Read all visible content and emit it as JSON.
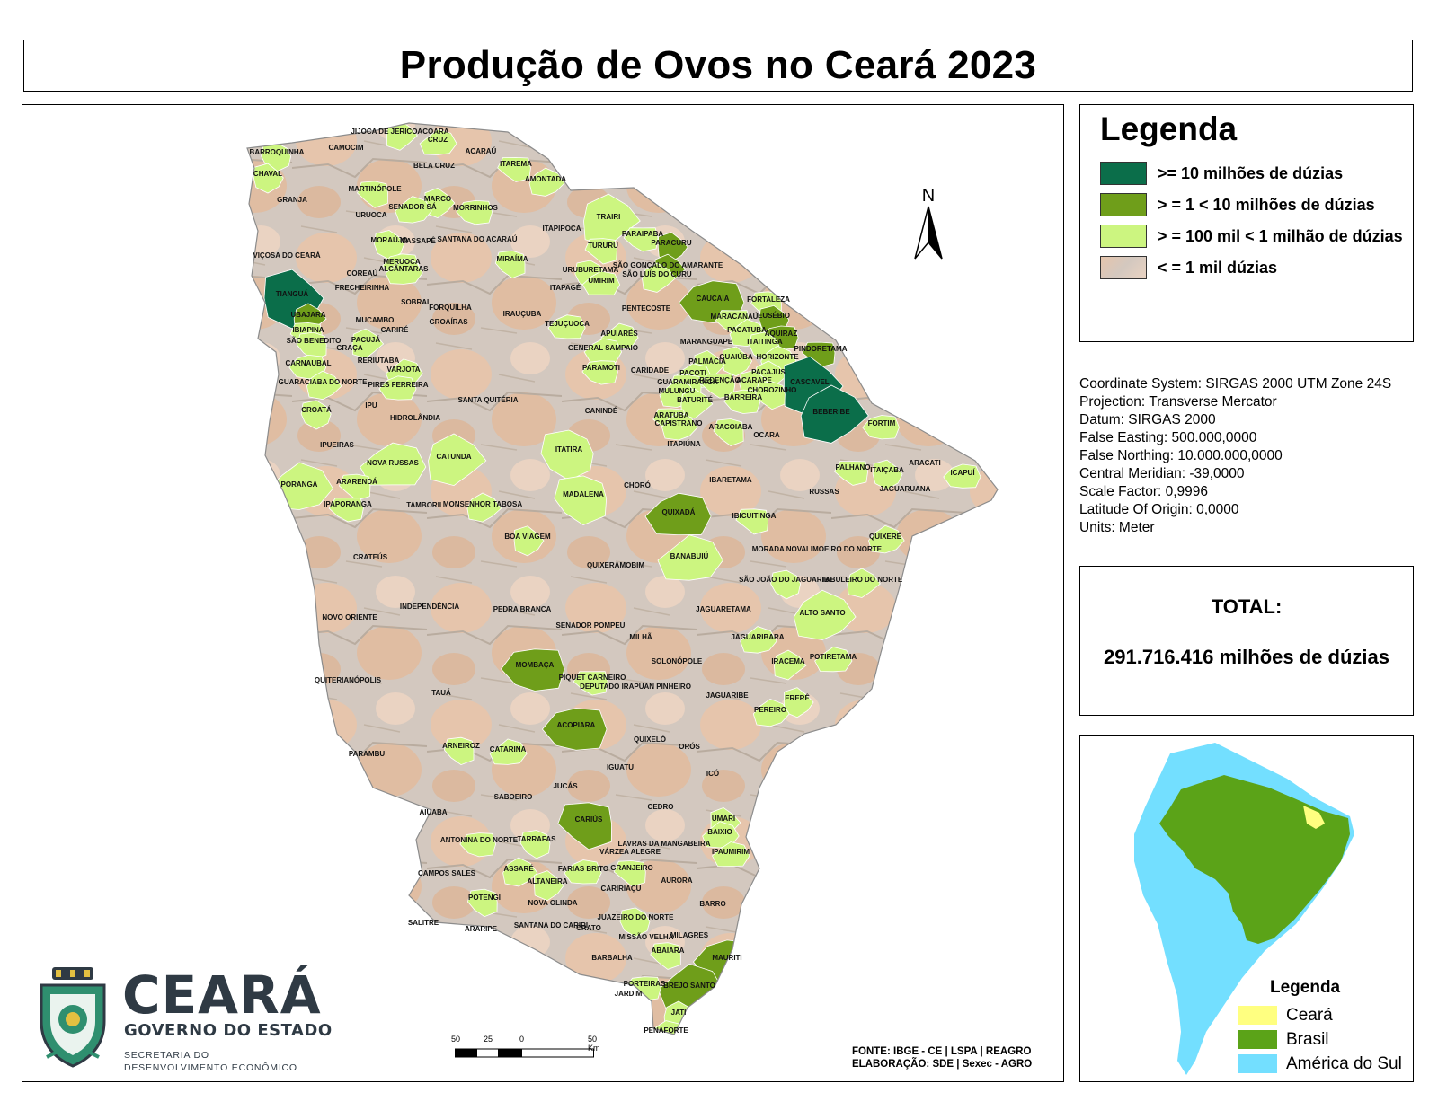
{
  "title": "Produção de Ovos no Ceará 2023",
  "legend": {
    "title": "Legenda",
    "items": [
      {
        "label": ">=  10 milhões de dúzias",
        "color": "#0b6e4a"
      },
      {
        "label": "> = 1 < 10 milhões de dúzias",
        "color": "#6f9e1a"
      },
      {
        "label": "> = 100 mil < 1 milhão de dúzias",
        "color": "#ccf580"
      },
      {
        "label": "< = 1 mil dúzias",
        "color": "#e3cfc0"
      }
    ]
  },
  "coordinate_info": [
    "Coordinate System: SIRGAS 2000 UTM Zone 24S",
    "Projection: Transverse Mercator",
    "Datum: SIRGAS 2000",
    "False Easting: 500.000,0000",
    "False Northing: 10.000.000,0000",
    "Central Meridian: -39,0000",
    "Scale Factor: 0,9996",
    "Latitude Of Origin: 0,0000",
    "Units: Meter"
  ],
  "total": {
    "label": "TOTAL:",
    "value": "291.716.416 milhões de dúzias"
  },
  "inset": {
    "legend_title": "Legenda",
    "items": [
      {
        "label": "Ceará",
        "color": "#ffff80"
      },
      {
        "label": "Brasil",
        "color": "#5ba318"
      },
      {
        "label": "América do Sul",
        "color": "#73dfff"
      }
    ]
  },
  "north_label": "N",
  "scale": {
    "ticks": [
      "50",
      "25",
      "0",
      "50 Km"
    ]
  },
  "source": {
    "line1": "FONTE: IBGE - CE | LSPA | REAGRO",
    "line2": "ELABORAÇÃO: SDE | Sexec - AGRO"
  },
  "logo": {
    "word": "CEARÁ",
    "subtitle": "GOVERNO DO ESTADO",
    "dept_line1": "SECRETARIA DO",
    "dept_line2": "DESENVOLVIMENTO ECONÔMICO"
  },
  "municipalities": [
    {
      "name": "JIJOCA DE JERICOACOARA",
      "cat": 3
    },
    {
      "name": "CRUZ",
      "cat": 3
    },
    {
      "name": "CAMOCIM",
      "cat": 4
    },
    {
      "name": "BARROQUINHA",
      "cat": 3
    },
    {
      "name": "ACARAÚ",
      "cat": 4
    },
    {
      "name": "BELA CRUZ",
      "cat": 4
    },
    {
      "name": "ITAREMA",
      "cat": 3
    },
    {
      "name": "CHAVAL",
      "cat": 3
    },
    {
      "name": "AMONTADA",
      "cat": 3
    },
    {
      "name": "GRANJA",
      "cat": 4
    },
    {
      "name": "MARTINÓPOLE",
      "cat": 3
    },
    {
      "name": "MARCO",
      "cat": 3
    },
    {
      "name": "SENADOR SÁ",
      "cat": 3
    },
    {
      "name": "MORRINHOS",
      "cat": 3
    },
    {
      "name": "URUOCA",
      "cat": 4
    },
    {
      "name": "TRAIRI",
      "cat": 3
    },
    {
      "name": "ITAPIPOCA",
      "cat": 4
    },
    {
      "name": "PARAIPABA",
      "cat": 3
    },
    {
      "name": "MORAÚJO",
      "cat": 3
    },
    {
      "name": "MASSAPÊ",
      "cat": 4
    },
    {
      "name": "SANTANA DO ACARAÚ",
      "cat": 4
    },
    {
      "name": "TURURU",
      "cat": 3
    },
    {
      "name": "PARACURU",
      "cat": 2
    },
    {
      "name": "VIÇOSA DO CEARÁ",
      "cat": 4
    },
    {
      "name": "MERUOCA",
      "cat": 3
    },
    {
      "name": "MIRAÍMA",
      "cat": 3
    },
    {
      "name": "SÃO GONÇALO DO AMARANTE",
      "cat": 2
    },
    {
      "name": "ALCÂNTARAS",
      "cat": 3
    },
    {
      "name": "COREAÚ",
      "cat": 4
    },
    {
      "name": "URUBURETAMA",
      "cat": 3
    },
    {
      "name": "SÃO LUÍS DO CURU",
      "cat": 3
    },
    {
      "name": "UMIRIM",
      "cat": 3
    },
    {
      "name": "FRECHEIRINHA",
      "cat": 4
    },
    {
      "name": "TIANGUÁ",
      "cat": 1
    },
    {
      "name": "ITAPAGÉ",
      "cat": 4
    },
    {
      "name": "CAUCAIA",
      "cat": 2
    },
    {
      "name": "FORTALEZA",
      "cat": 3
    },
    {
      "name": "SOBRAL",
      "cat": 4
    },
    {
      "name": "FORQUILHA",
      "cat": 4
    },
    {
      "name": "IRAUÇUBA",
      "cat": 4
    },
    {
      "name": "PENTECOSTE",
      "cat": 4
    },
    {
      "name": "UBAJARA",
      "cat": 2
    },
    {
      "name": "MUCAMBO",
      "cat": 4
    },
    {
      "name": "MARACANAÚ",
      "cat": 3
    },
    {
      "name": "EUSÉBIO",
      "cat": 2
    },
    {
      "name": "GROAÍRAS",
      "cat": 4
    },
    {
      "name": "TEJUÇUOCA",
      "cat": 3
    },
    {
      "name": "IBIAPINA",
      "cat": 3
    },
    {
      "name": "CARIRÉ",
      "cat": 4
    },
    {
      "name": "PACATUBA",
      "cat": 3
    },
    {
      "name": "AQUIRAZ",
      "cat": 2
    },
    {
      "name": "SÃO BENEDITO",
      "cat": 3
    },
    {
      "name": "PACUJÁ",
      "cat": 3
    },
    {
      "name": "APUIARÉS",
      "cat": 3
    },
    {
      "name": "MARANGUAPE",
      "cat": 4
    },
    {
      "name": "ITAITINGA",
      "cat": 3
    },
    {
      "name": "GRAÇA",
      "cat": 4
    },
    {
      "name": "GENERAL SAMPAIO",
      "cat": 3
    },
    {
      "name": "PINDORETAMA",
      "cat": 2
    },
    {
      "name": "GUAIÚBA",
      "cat": 3
    },
    {
      "name": "HORIZONTE",
      "cat": 3
    },
    {
      "name": "CARNAUBAL",
      "cat": 3
    },
    {
      "name": "RERIUTABA",
      "cat": 4
    },
    {
      "name": "PALMÁCIA",
      "cat": 3
    },
    {
      "name": "VARJOTA",
      "cat": 3
    },
    {
      "name": "PARAMOTI",
      "cat": 3
    },
    {
      "name": "CARIDADE",
      "cat": 4
    },
    {
      "name": "PACAJUS",
      "cat": 3
    },
    {
      "name": "PACOTI",
      "cat": 3
    },
    {
      "name": "REDENÇÃO",
      "cat": 3
    },
    {
      "name": "ACARAPE",
      "cat": 3
    },
    {
      "name": "GUARACIABA DO NORTE",
      "cat": 3
    },
    {
      "name": "PIRES FERREIRA",
      "cat": 3
    },
    {
      "name": "GUARAMIRANGA",
      "cat": 3
    },
    {
      "name": "CASCAVEL",
      "cat": 1
    },
    {
      "name": "MULUNGU",
      "cat": 3
    },
    {
      "name": "BARREIRA",
      "cat": 3
    },
    {
      "name": "CHOROZINHO",
      "cat": 3
    },
    {
      "name": "BATURITÉ",
      "cat": 3
    },
    {
      "name": "SANTA QUITÉRIA",
      "cat": 4
    },
    {
      "name": "IPU",
      "cat": 4
    },
    {
      "name": "CROATÁ",
      "cat": 3
    },
    {
      "name": "BEBERIBE",
      "cat": 1
    },
    {
      "name": "CANINDÉ",
      "cat": 4
    },
    {
      "name": "ARATUBA",
      "cat": 3
    },
    {
      "name": "HIDROLÂNDIA",
      "cat": 4
    },
    {
      "name": "CAPISTRANO",
      "cat": 3
    },
    {
      "name": "FORTIM",
      "cat": 3
    },
    {
      "name": "ARACOIABA",
      "cat": 3
    },
    {
      "name": "OCARA",
      "cat": 4
    },
    {
      "name": "ITAPIÚNA",
      "cat": 4
    },
    {
      "name": "IPUEIRAS",
      "cat": 4
    },
    {
      "name": "ITATIRA",
      "cat": 3
    },
    {
      "name": "CATUNDA",
      "cat": 3
    },
    {
      "name": "NOVA RUSSAS",
      "cat": 3
    },
    {
      "name": "PALHANO",
      "cat": 3
    },
    {
      "name": "ITAIÇABA",
      "cat": 3
    },
    {
      "name": "ARACATI",
      "cat": 4
    },
    {
      "name": "ICAPUÍ",
      "cat": 3
    },
    {
      "name": "ARARENDÁ",
      "cat": 3
    },
    {
      "name": "IBARETAMA",
      "cat": 4
    },
    {
      "name": "PORANGA",
      "cat": 3
    },
    {
      "name": "CHORÓ",
      "cat": 4
    },
    {
      "name": "MADALENA",
      "cat": 3
    },
    {
      "name": "RUSSAS",
      "cat": 4
    },
    {
      "name": "JAGUARUANA",
      "cat": 4
    },
    {
      "name": "IPAPORANGA",
      "cat": 3
    },
    {
      "name": "TAMBORIL",
      "cat": 4
    },
    {
      "name": "MONSENHOR TABOSA",
      "cat": 3
    },
    {
      "name": "QUIXADÁ",
      "cat": 2
    },
    {
      "name": "IBICUITINGA",
      "cat": 3
    },
    {
      "name": "BOA VIAGEM",
      "cat": 3
    },
    {
      "name": "QUIXERÉ",
      "cat": 3
    },
    {
      "name": "MORADA NOVA",
      "cat": 4
    },
    {
      "name": "LIMOEIRO DO NORTE",
      "cat": 4
    },
    {
      "name": "CRATEÚS",
      "cat": 4
    },
    {
      "name": "BANABUIÚ",
      "cat": 3
    },
    {
      "name": "QUIXERAMOBIM",
      "cat": 4
    },
    {
      "name": "SÃO JOÃO DO JAGUARIBE",
      "cat": 3
    },
    {
      "name": "TABULEIRO DO NORTE",
      "cat": 3
    },
    {
      "name": "INDEPENDÊNCIA",
      "cat": 4
    },
    {
      "name": "PEDRA BRANCA",
      "cat": 4
    },
    {
      "name": "JAGUARETAMA",
      "cat": 4
    },
    {
      "name": "ALTO SANTO",
      "cat": 3
    },
    {
      "name": "NOVO ORIENTE",
      "cat": 4
    },
    {
      "name": "SENADOR POMPEU",
      "cat": 4
    },
    {
      "name": "MILHÃ",
      "cat": 4
    },
    {
      "name": "JAGUARIBARA",
      "cat": 3
    },
    {
      "name": "MOMBAÇA",
      "cat": 2
    },
    {
      "name": "SOLONÓPOLE",
      "cat": 4
    },
    {
      "name": "IRACEMA",
      "cat": 3
    },
    {
      "name": "POTIRETAMA",
      "cat": 3
    },
    {
      "name": "PIQUET CARNEIRO",
      "cat": 3
    },
    {
      "name": "DEPUTADO IRAPUAN PINHEIRO",
      "cat": 4
    },
    {
      "name": "QUITERIANÓPOLIS",
      "cat": 4
    },
    {
      "name": "TAUÁ",
      "cat": 4
    },
    {
      "name": "JAGUARIBE",
      "cat": 4
    },
    {
      "name": "ERERÊ",
      "cat": 3
    },
    {
      "name": "PEREIRO",
      "cat": 3
    },
    {
      "name": "ACOPIARA",
      "cat": 2
    },
    {
      "name": "ARNEIROZ",
      "cat": 3
    },
    {
      "name": "QUIXELÔ",
      "cat": 4
    },
    {
      "name": "CATARINA",
      "cat": 3
    },
    {
      "name": "ORÓS",
      "cat": 4
    },
    {
      "name": "PARAMBU",
      "cat": 4
    },
    {
      "name": "IGUATU",
      "cat": 4
    },
    {
      "name": "ICÓ",
      "cat": 4
    },
    {
      "name": "JUCÁS",
      "cat": 4
    },
    {
      "name": "SABOEIRO",
      "cat": 4
    },
    {
      "name": "CEDRO",
      "cat": 4
    },
    {
      "name": "AIUABA",
      "cat": 4
    },
    {
      "name": "CARIÚS",
      "cat": 2
    },
    {
      "name": "UMARI",
      "cat": 3
    },
    {
      "name": "BAIXIO",
      "cat": 3
    },
    {
      "name": "ANTONINA DO NORTE",
      "cat": 3
    },
    {
      "name": "TARRAFAS",
      "cat": 3
    },
    {
      "name": "LAVRAS DA MANGABEIRA",
      "cat": 4
    },
    {
      "name": "IPAUMIRIM",
      "cat": 3
    },
    {
      "name": "VÁRZEA ALEGRE",
      "cat": 4
    },
    {
      "name": "CAMPOS SALES",
      "cat": 4
    },
    {
      "name": "ASSARÉ",
      "cat": 3
    },
    {
      "name": "FARIAS BRITO",
      "cat": 3
    },
    {
      "name": "GRANJEIRO",
      "cat": 3
    },
    {
      "name": "ALTANEIRA",
      "cat": 3
    },
    {
      "name": "AURORA",
      "cat": 4
    },
    {
      "name": "CARIRIAÇU",
      "cat": 4
    },
    {
      "name": "POTENGI",
      "cat": 3
    },
    {
      "name": "BARRO",
      "cat": 4
    },
    {
      "name": "NOVA OLINDA",
      "cat": 4
    },
    {
      "name": "SALITRE",
      "cat": 4
    },
    {
      "name": "JUAZEIRO DO NORTE",
      "cat": 3
    },
    {
      "name": "SANTANA DO CARIRI",
      "cat": 4
    },
    {
      "name": "CRATO",
      "cat": 4
    },
    {
      "name": "ARARIPE",
      "cat": 4
    },
    {
      "name": "MILAGRES",
      "cat": 4
    },
    {
      "name": "MISSÃO VELHA",
      "cat": 4
    },
    {
      "name": "MAURITI",
      "cat": 2
    },
    {
      "name": "ABAIARA",
      "cat": 3
    },
    {
      "name": "BARBALHA",
      "cat": 4
    },
    {
      "name": "BREJO SANTO",
      "cat": 2
    },
    {
      "name": "PORTEIRAS",
      "cat": 3
    },
    {
      "name": "JARDIM",
      "cat": 3
    },
    {
      "name": "JATI",
      "cat": 3
    },
    {
      "name": "PENAFORTE",
      "cat": 3
    }
  ]
}
